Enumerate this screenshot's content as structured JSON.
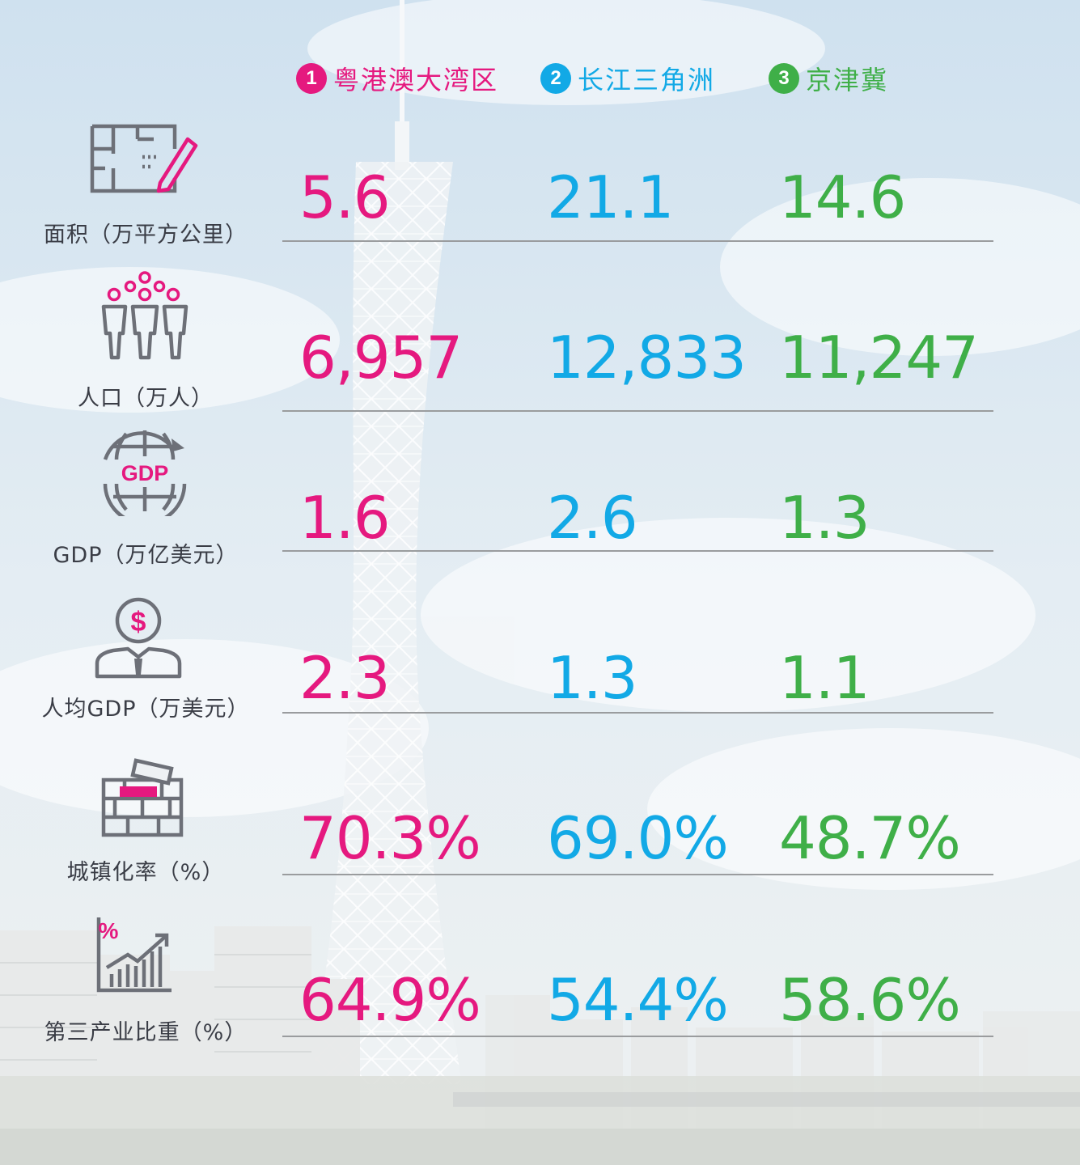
{
  "colors": {
    "region1": "#e5197f",
    "region2": "#12a9e6",
    "region3": "#3faf48",
    "icon_gray": "#6d7078"
  },
  "legend": [
    {
      "num": "1",
      "label": "粤港澳大湾区"
    },
    {
      "num": "2",
      "label": "长江三角洲"
    },
    {
      "num": "3",
      "label": "京津冀"
    }
  ],
  "metrics": [
    {
      "icon": "floorplan-icon",
      "label": "面积（万平方公里）",
      "values": [
        "5.6",
        "21.1",
        "14.6"
      ]
    },
    {
      "icon": "population-icon",
      "label": "人口（万人）",
      "values": [
        "6,957",
        "12,833",
        "11,247"
      ]
    },
    {
      "icon": "globe-gdp-icon",
      "icon_text": "GDP",
      "label": "GDP（万亿美元）",
      "values": [
        "1.6",
        "2.6",
        "1.3"
      ]
    },
    {
      "icon": "person-dollar-icon",
      "icon_text": "$",
      "label": "人均GDP（万美元）",
      "values": [
        "2.3",
        "1.3",
        "1.1"
      ]
    },
    {
      "icon": "brick-wall-icon",
      "label": "城镇化率（%）",
      "values": [
        "70.3%",
        "69.0%",
        "48.7%"
      ]
    },
    {
      "icon": "growth-chart-icon",
      "icon_text": "%",
      "label": "第三产业比重（%）",
      "values": [
        "64.9%",
        "54.4%",
        "58.6%"
      ]
    }
  ]
}
